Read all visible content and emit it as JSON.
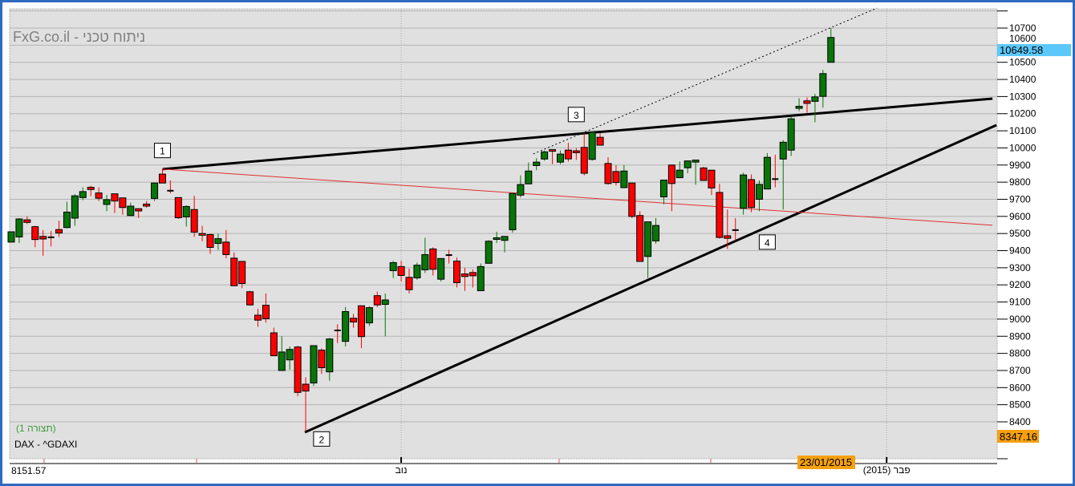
{
  "header": {
    "title": "FxG.co.il - ניתוח טכני"
  },
  "panel": {
    "layout_label": "(תצורה 1)",
    "symbol_label": "DAX - ^GDAXI"
  },
  "footer": {
    "min_value": "8151.57"
  },
  "colors": {
    "frame": "#2e6bc0",
    "plot_bg": "#e0e0e0",
    "grid": "#b4b4b4",
    "bull": "#087508",
    "bear": "#ff0000",
    "last_price_bg": "#5cc8fa",
    "cursor_bg": "#f5a010",
    "trend": "#000000",
    "red_line": "#e03030"
  },
  "chart_data": {
    "type": "candlestick",
    "title": "",
    "ylim": [
      8200,
      10800
    ],
    "yticks": [
      8400,
      8500,
      8600,
      8700,
      8800,
      8900,
      9000,
      9100,
      9200,
      9300,
      9400,
      9500,
      9600,
      9700,
      9800,
      9900,
      10000,
      10100,
      10200,
      10300,
      10400,
      10500,
      10600,
      10700
    ],
    "grid": true,
    "x_labels": [
      {
        "text": "נוב",
        "index": 49
      },
      {
        "text": "פבר (2015)",
        "index": 110
      }
    ],
    "last_price": "10649.58",
    "cursor_price": "8347.16",
    "cursor_date": "23/01/2015",
    "candles": [
      [
        9450,
        9510,
        9450,
        9510
      ],
      [
        9480,
        9590,
        9445,
        9585
      ],
      [
        9580,
        9600,
        9555,
        9565
      ],
      [
        9540,
        9545,
        9420,
        9465
      ],
      [
        9483,
        9520,
        9370,
        9468
      ],
      [
        9478,
        9515,
        9425,
        9478
      ],
      [
        9523,
        9575,
        9480,
        9503
      ],
      [
        9535,
        9685,
        9530,
        9625
      ],
      [
        9590,
        9730,
        9545,
        9720
      ],
      [
        9710,
        9770,
        9695,
        9745
      ],
      [
        9770,
        9780,
        9718,
        9757
      ],
      [
        9737,
        9770,
        9690,
        9706
      ],
      [
        9670,
        9725,
        9630,
        9698
      ],
      [
        9732,
        9732,
        9620,
        9690
      ],
      [
        9708,
        9708,
        9610,
        9652
      ],
      [
        9605,
        9680,
        9600,
        9660
      ],
      [
        9645,
        9645,
        9590,
        9632
      ],
      [
        9672,
        9690,
        9650,
        9660
      ],
      [
        9705,
        9795,
        9690,
        9795
      ],
      [
        9847,
        9880,
        9795,
        9795
      ],
      [
        9750,
        9810,
        9735,
        9750
      ],
      [
        9710,
        9712,
        9585,
        9592
      ],
      [
        9597,
        9665,
        9540,
        9658
      ],
      [
        9640,
        9720,
        9480,
        9508
      ],
      [
        9500,
        9545,
        9455,
        9490
      ],
      [
        9494,
        9500,
        9380,
        9419
      ],
      [
        9442,
        9500,
        9405,
        9470
      ],
      [
        9450,
        9520,
        9355,
        9377
      ],
      [
        9356,
        9390,
        9195,
        9195
      ],
      [
        9337,
        9337,
        9180,
        9208
      ],
      [
        9160,
        9165,
        9078,
        9083
      ],
      [
        9023,
        9060,
        8955,
        8994
      ],
      [
        9081,
        9150,
        8980,
        9002
      ],
      [
        8920,
        8950,
        8786,
        8786
      ],
      [
        8700,
        8900,
        8700,
        8808
      ],
      [
        8762,
        8840,
        8705,
        8823
      ],
      [
        8837,
        8845,
        8550,
        8572
      ],
      [
        8620,
        8660,
        8345,
        8580
      ],
      [
        8627,
        8845,
        8610,
        8845
      ],
      [
        8819,
        8830,
        8680,
        8716
      ],
      [
        8692,
        8890,
        8640,
        8884
      ],
      [
        8934,
        8970,
        8860,
        8934
      ],
      [
        8870,
        9070,
        8840,
        9044
      ],
      [
        9005,
        9030,
        8950,
        8983
      ],
      [
        9078,
        9080,
        8830,
        8898
      ],
      [
        8978,
        9075,
        8960,
        9067
      ],
      [
        9137,
        9160,
        9070,
        9083
      ],
      [
        9086,
        9150,
        8900,
        9112
      ],
      [
        9283,
        9340,
        9240,
        9330
      ],
      [
        9307,
        9340,
        9220,
        9255
      ],
      [
        9244,
        9295,
        9150,
        9172
      ],
      [
        9241,
        9330,
        9230,
        9315
      ],
      [
        9288,
        9475,
        9270,
        9377
      ],
      [
        9410,
        9420,
        9255,
        9291
      ],
      [
        9233,
        9354,
        9220,
        9354
      ],
      [
        9374,
        9405,
        9325,
        9374
      ],
      [
        9339,
        9360,
        9185,
        9213
      ],
      [
        9264,
        9300,
        9165,
        9249
      ],
      [
        9272,
        9290,
        9185,
        9253
      ],
      [
        9166,
        9325,
        9166,
        9307
      ],
      [
        9326,
        9460,
        9326,
        9455
      ],
      [
        9466,
        9510,
        9445,
        9475
      ],
      [
        9460,
        9483,
        9390,
        9483
      ],
      [
        9522,
        9734,
        9505,
        9734
      ],
      [
        9724,
        9840,
        9710,
        9786
      ],
      [
        9790,
        9915,
        9790,
        9865
      ],
      [
        9897,
        9940,
        9870,
        9917
      ],
      [
        9935,
        9985,
        9925,
        9977
      ],
      [
        9990,
        9990,
        9905,
        9981
      ],
      [
        9917,
        9985,
        9905,
        9964
      ],
      [
        9987,
        10030,
        9920,
        9936
      ],
      [
        9983,
        10000,
        9930,
        9972
      ],
      [
        10003,
        10085,
        9840,
        9852
      ],
      [
        9933,
        10095,
        9925,
        10092
      ],
      [
        10062,
        10085,
        10016,
        10016
      ],
      [
        9909,
        9945,
        9785,
        9792
      ],
      [
        9862,
        9900,
        9780,
        9798
      ],
      [
        9768,
        9900,
        9765,
        9865
      ],
      [
        9795,
        9795,
        9590,
        9600
      ],
      [
        9605,
        9630,
        9337,
        9337
      ],
      [
        9366,
        9568,
        9240,
        9568
      ],
      [
        9457,
        9590,
        9440,
        9547
      ],
      [
        9714,
        9812,
        9670,
        9812
      ],
      [
        9900,
        9900,
        9630,
        9792
      ],
      [
        9826,
        9920,
        9826,
        9870
      ],
      [
        9884,
        9925,
        9852,
        9924
      ],
      [
        9917,
        9930,
        9785,
        9929
      ],
      [
        9883,
        9890,
        9810,
        9810
      ],
      [
        9870,
        9870,
        9725,
        9766
      ],
      [
        9740,
        9790,
        9470,
        9477
      ],
      [
        9487,
        9640,
        9410,
        9472
      ],
      [
        9520,
        9590,
        9460,
        9520
      ],
      [
        9647,
        9855,
        9610,
        9842
      ],
      [
        9815,
        9845,
        9625,
        9652
      ],
      [
        9700,
        9810,
        9630,
        9787
      ],
      [
        9760,
        9970,
        9760,
        9945
      ],
      [
        9818,
        9960,
        9770,
        9818
      ],
      [
        9935,
        10045,
        9640,
        10033
      ],
      [
        9987,
        10185,
        9953,
        10170
      ],
      [
        10231,
        10290,
        10215,
        10243
      ],
      [
        10275,
        10295,
        10205,
        10260
      ],
      [
        10272,
        10315,
        10150,
        10298
      ],
      [
        10301,
        10455,
        10235,
        10434
      ],
      [
        10500,
        10700,
        10500,
        10645
      ]
    ],
    "trendlines": [
      {
        "name": "resistance-trendline",
        "style": "solid-thick",
        "color": "#000000",
        "from": [
          19.05,
          9876
        ],
        "to": [
          123.3,
          10288
        ]
      },
      {
        "name": "support-trendline",
        "style": "solid-thick",
        "color": "#000000",
        "from": [
          36.9,
          8339
        ],
        "to": [
          123.8,
          10133
        ]
      },
      {
        "name": "red-trendline",
        "style": "solid-thin",
        "color": "#e03030",
        "from": [
          19.05,
          9876
        ],
        "to": [
          123.3,
          9548
        ]
      },
      {
        "name": "dotted-channel-line",
        "style": "dotted",
        "color": "#000000",
        "from": [
          65.6,
          9965
        ],
        "to": [
          108.8,
          10817
        ]
      }
    ],
    "point_labels": [
      {
        "text": "1",
        "index": 19,
        "price": 9985
      },
      {
        "text": "2",
        "index": 39,
        "price": 8300
      },
      {
        "text": "3",
        "index": 71,
        "price": 10195
      },
      {
        "text": "4",
        "index": 95,
        "price": 9450
      }
    ]
  }
}
